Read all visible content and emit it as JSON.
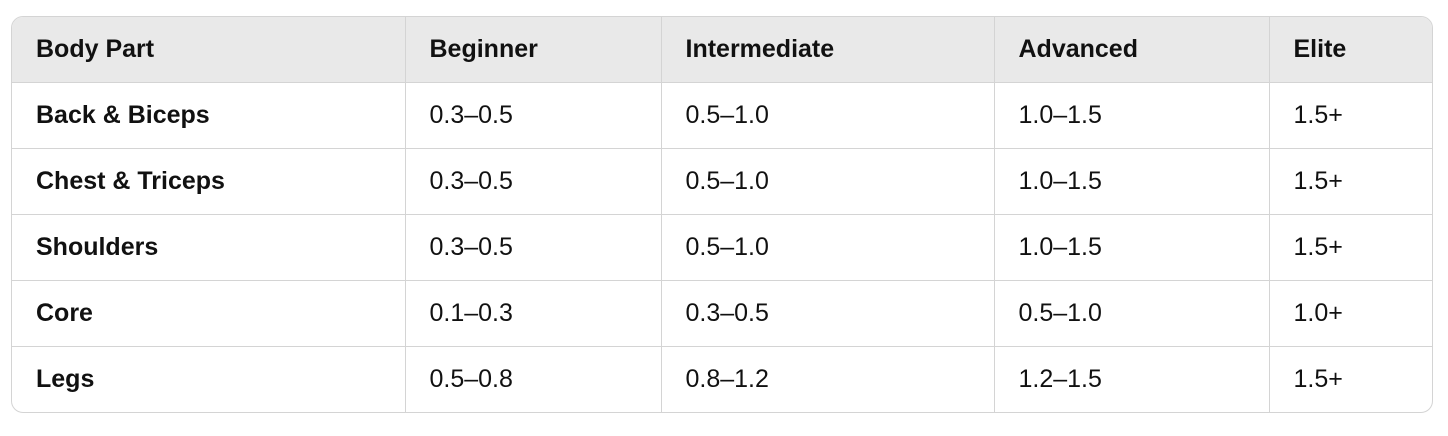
{
  "table": {
    "headers": [
      "Body Part",
      "Beginner",
      "Intermediate",
      "Advanced",
      "Elite"
    ],
    "rows": [
      [
        "Back & Biceps",
        "0.3–0.5",
        "0.5–1.0",
        "1.0–1.5",
        "1.5+"
      ],
      [
        "Chest & Triceps",
        "0.3–0.5",
        "0.5–1.0",
        "1.0–1.5",
        "1.5+"
      ],
      [
        "Shoulders",
        "0.3–0.5",
        "0.5–1.0",
        "1.0–1.5",
        "1.5+"
      ],
      [
        "Core",
        "0.1–0.3",
        "0.3–0.5",
        "0.5–1.0",
        "1.0+"
      ],
      [
        "Legs",
        "0.5–0.8",
        "0.8–1.2",
        "1.2–1.5",
        "1.5+"
      ]
    ]
  }
}
